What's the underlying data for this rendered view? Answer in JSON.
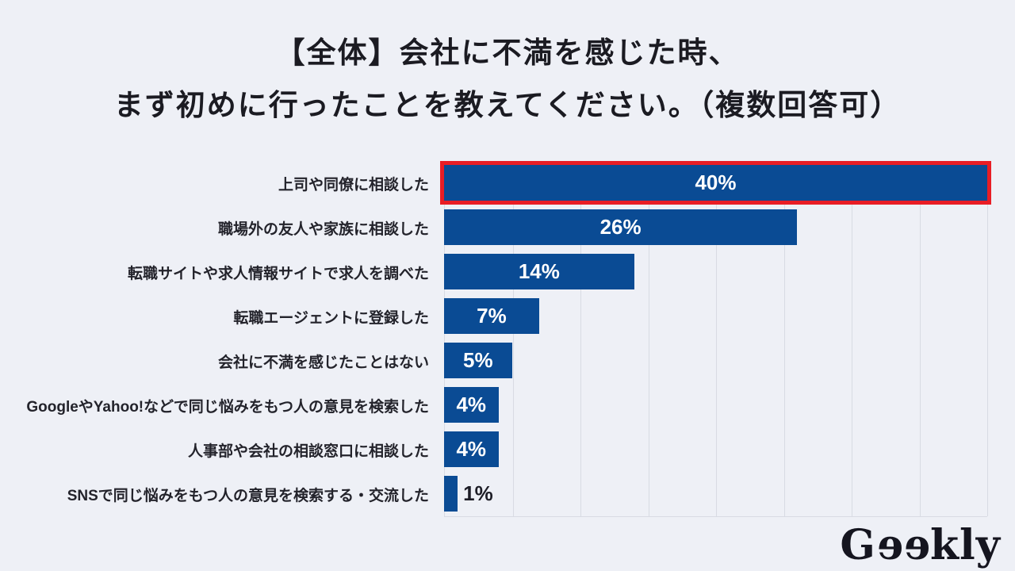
{
  "title": {
    "line1": "【全体】会社に不満を感じた時、",
    "line2": "まず初めに行ったことを教えてください。（複数回答可）"
  },
  "chart_data": {
    "type": "bar",
    "orientation": "horizontal",
    "title": "【全体】会社に不満を感じた時、まず初めに行ったことを教えてください。（複数回答可）",
    "categories": [
      "上司や同僚に相談した",
      "職場外の友人や家族に相談した",
      "転職サイトや求人情報サイトで求人を調べた",
      "転職エージェントに登録した",
      "会社に不満を感じたことはない",
      "GoogleやYahoo!などで同じ悩みをもつ人の意見を検索した",
      "人事部や会社の相談窓口に相談した",
      "SNSで同じ悩みをもつ人の意見を検索する・交流した"
    ],
    "values": [
      40,
      26,
      14,
      7,
      5,
      4,
      4,
      1
    ],
    "value_labels": [
      "40%",
      "26%",
      "14%",
      "7%",
      "5%",
      "4%",
      "4%",
      "1%"
    ],
    "unit": "%",
    "xlim": [
      0,
      40
    ],
    "gridline_step": 5,
    "grid": true,
    "legend": false,
    "highlighted_index": 0,
    "value_label_outside_indices": [
      7
    ]
  },
  "branding": {
    "logo": {
      "full_name": "Geekly",
      "prefix": "G",
      "reversed_letters": "ee",
      "suffix": "kly"
    }
  },
  "colors": {
    "background": "#eef0f6",
    "bar": "#0a4b94",
    "highlight_border": "#e81d25",
    "grid_line": "#d8dbe3",
    "axis_line": "#d8dbe3",
    "title_text": "#1b1b22",
    "category_text": "#23232b",
    "value_text_inside": "#ffffff",
    "value_text_outside": "#1d1d26",
    "logo_text": "#15151f"
  }
}
